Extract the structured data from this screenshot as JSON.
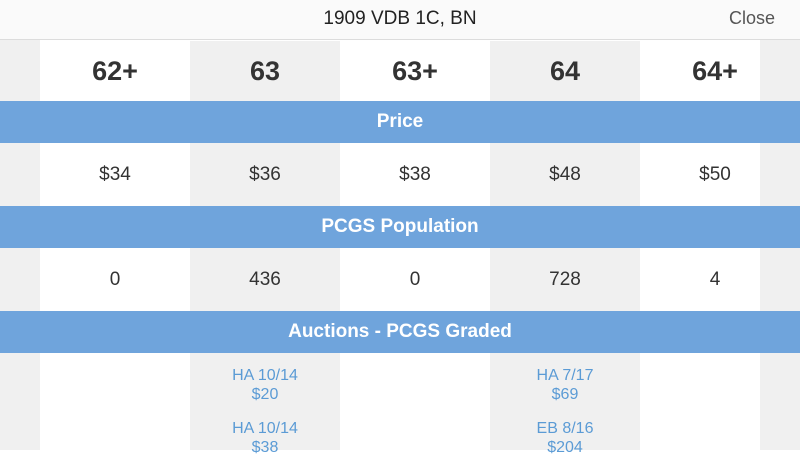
{
  "header": {
    "title": "1909 VDB 1C, BN",
    "close_label": "Close"
  },
  "grades": [
    "62+",
    "63",
    "63+",
    "64",
    "64+"
  ],
  "sections": {
    "price": "Price",
    "population": "PCGS Population",
    "auctions": "Auctions - PCGS Graded"
  },
  "prices": [
    "$34",
    "$36",
    "$38",
    "$48",
    "$50"
  ],
  "populations": [
    "0",
    "436",
    "0",
    "728",
    "4"
  ],
  "auctions": {
    "col2": [
      {
        "house_date": "HA 10/14",
        "price": "$20"
      },
      {
        "house_date": "HA 10/14",
        "price": "$38"
      }
    ],
    "col4": [
      {
        "house_date": "HA 7/17",
        "price": "$69"
      },
      {
        "house_date": "EB 8/16",
        "price": "$204"
      }
    ]
  },
  "colors": {
    "band": "#6fa4dc",
    "link": "#5b9bd5",
    "alt_column": "#f0f0f0"
  }
}
